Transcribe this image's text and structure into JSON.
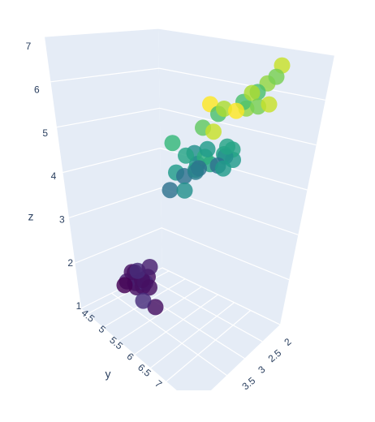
{
  "chart_data": {
    "type": "scatter3d",
    "x_title": null,
    "y_title": "y",
    "z_title": "z",
    "xlim": [
      2,
      4.4
    ],
    "ylim": [
      4.3,
      7.9
    ],
    "zlim": [
      1,
      7
    ],
    "xticks": [
      2,
      2.5,
      3,
      3.5
    ],
    "yticks": [
      4.5,
      5,
      5.5,
      6,
      6.5,
      7
    ],
    "zticks": [
      1,
      2,
      3,
      4,
      5,
      6,
      7
    ],
    "grid": true,
    "colorscale": [
      "#440154",
      "#482878",
      "#3e4989",
      "#31688e",
      "#26828e",
      "#1f9e89",
      "#35b779",
      "#6ece58",
      "#b5de2b",
      "#fde725"
    ],
    "clim": [
      0.1,
      2.5
    ],
    "x": [
      3.5,
      3.0,
      3.2,
      3.1,
      3.6,
      3.9,
      3.4,
      3.4,
      2.9,
      3.7,
      4.0,
      4.4,
      3.8,
      2.3,
      3.0,
      3.2,
      3.2,
      3.1,
      2.3,
      2.8,
      2.8,
      3.3,
      2.4,
      2.9,
      2.7,
      2.0,
      3.0,
      2.2,
      2.9,
      2.9,
      3.1,
      3.0,
      2.7,
      2.2,
      2.5,
      3.3,
      2.7,
      3.0,
      2.9,
      3.0,
      3.0,
      2.5,
      2.9,
      2.5,
      3.6,
      3.8,
      2.6,
      2.8,
      3.8,
      3.0,
      3.2
    ],
    "y": [
      5.1,
      4.9,
      4.7,
      4.6,
      5.0,
      5.4,
      4.6,
      5.0,
      4.4,
      5.4,
      5.8,
      5.7,
      5.1,
      4.5,
      4.3,
      7.0,
      6.4,
      6.9,
      5.5,
      6.5,
      5.7,
      6.3,
      4.9,
      6.6,
      5.2,
      5.0,
      5.9,
      6.0,
      6.1,
      5.6,
      6.7,
      5.6,
      5.8,
      6.2,
      5.6,
      6.3,
      5.8,
      7.1,
      6.3,
      6.5,
      7.6,
      4.9,
      7.3,
      6.7,
      7.2,
      7.7,
      7.7,
      7.7,
      7.9,
      7.7,
      6.4
    ],
    "z": [
      1.4,
      1.4,
      1.3,
      1.5,
      1.4,
      1.7,
      1.4,
      1.5,
      1.4,
      1.5,
      1.2,
      1.5,
      1.9,
      1.3,
      1.1,
      4.7,
      4.5,
      4.9,
      4.0,
      4.6,
      4.5,
      4.7,
      3.3,
      4.6,
      3.9,
      3.5,
      4.2,
      4.0,
      4.7,
      3.6,
      4.4,
      4.5,
      4.1,
      4.5,
      3.9,
      6.0,
      5.1,
      5.9,
      5.6,
      5.8,
      6.6,
      4.5,
      6.3,
      5.8,
      6.1,
      6.7,
      6.9,
      6.7,
      6.4,
      6.1,
      5.3
    ],
    "color_values": [
      0.2,
      0.2,
      0.2,
      0.2,
      0.2,
      0.4,
      0.3,
      0.2,
      0.2,
      0.2,
      0.2,
      0.4,
      0.4,
      0.3,
      0.1,
      1.4,
      1.5,
      1.5,
      1.3,
      1.5,
      1.3,
      1.6,
      1.0,
      1.3,
      1.4,
      1.0,
      1.5,
      1.0,
      1.4,
      1.3,
      1.4,
      1.5,
      1.0,
      1.5,
      1.1,
      2.5,
      1.9,
      2.1,
      1.8,
      2.2,
      2.1,
      1.7,
      1.8,
      1.8,
      2.5,
      2.2,
      2.3,
      2.0,
      2.0,
      2.3,
      2.3
    ]
  }
}
